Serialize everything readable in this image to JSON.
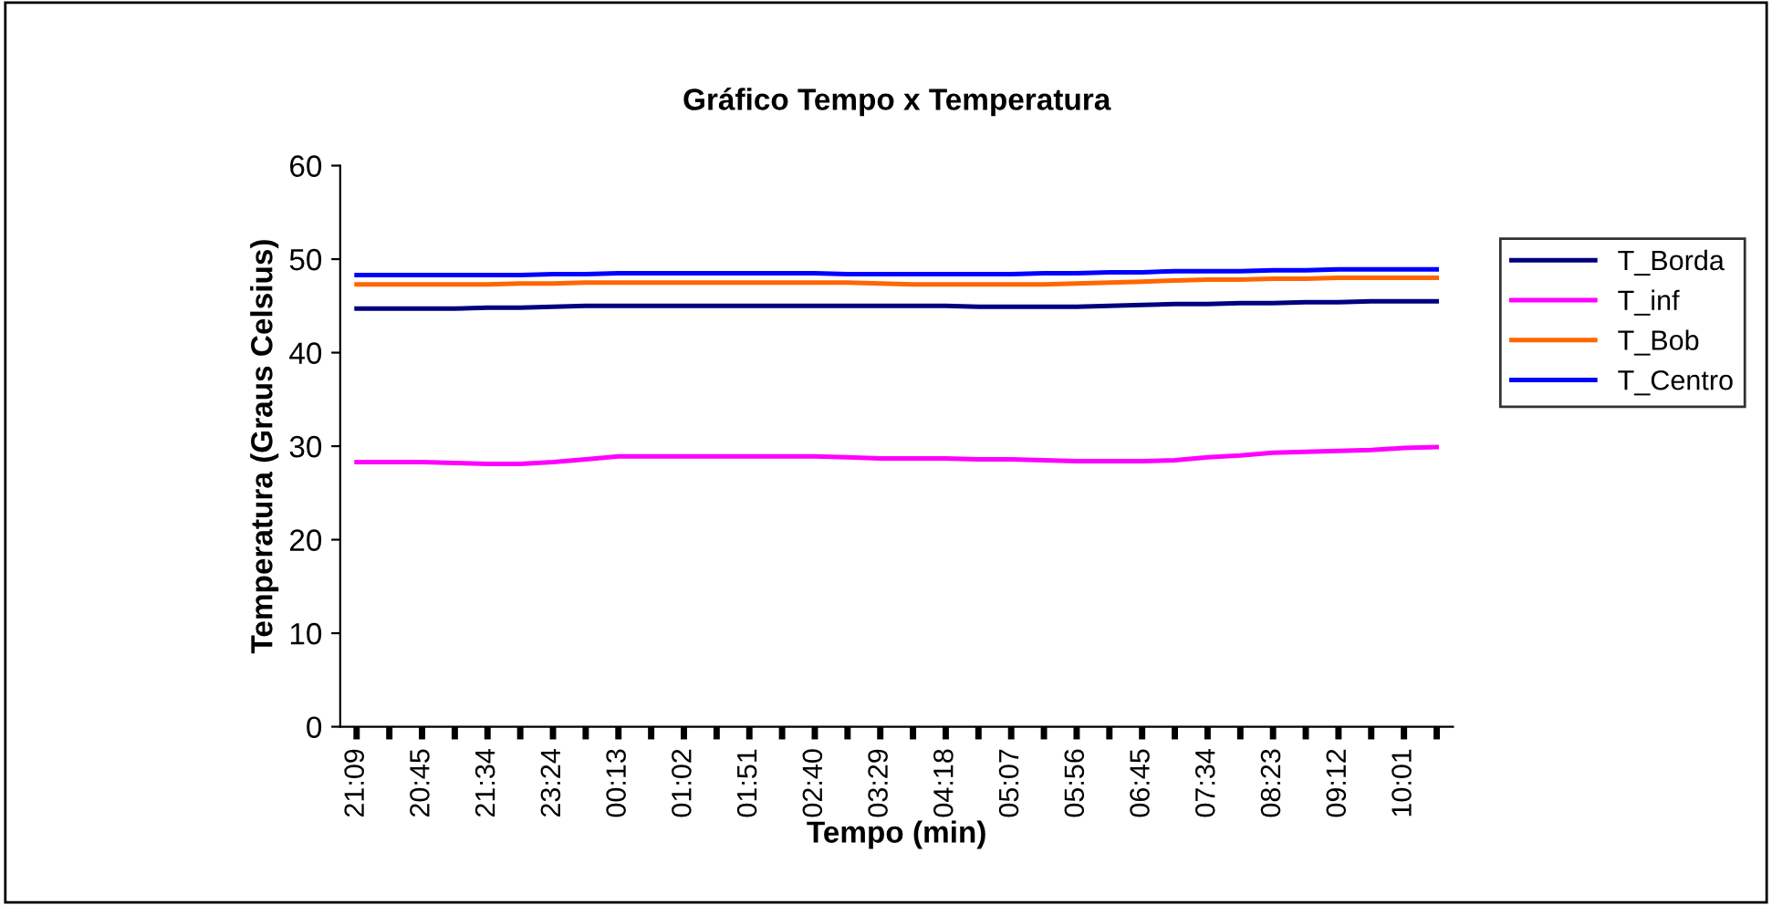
{
  "chart_data": {
    "type": "line",
    "title": "Gráfico Tempo x Temperatura",
    "xlabel": "Tempo (min)",
    "ylabel": "Temperatura (Graus Celsius)",
    "categories": [
      "21:09",
      null,
      "20:45",
      null,
      "21:34",
      null,
      "23:24",
      null,
      "00:13",
      null,
      "01:02",
      null,
      "01:51",
      null,
      "02:40",
      null,
      "03:29",
      null,
      "04:18",
      null,
      "05:07",
      null,
      "05:56",
      null,
      "06:45",
      null,
      "07:34",
      null,
      "08:23",
      null,
      "09:12",
      null,
      "10:01",
      null
    ],
    "series": [
      {
        "name": "T_Borda",
        "color": "#000080",
        "values": [
          44.7,
          44.7,
          44.7,
          44.7,
          44.8,
          44.8,
          44.9,
          45.0,
          45.0,
          45.0,
          45.0,
          45.0,
          45.0,
          45.0,
          45.0,
          45.0,
          45.0,
          45.0,
          45.0,
          44.9,
          44.9,
          44.9,
          44.9,
          45.0,
          45.1,
          45.2,
          45.2,
          45.3,
          45.3,
          45.4,
          45.4,
          45.5,
          45.5,
          45.5
        ]
      },
      {
        "name": "T_inf",
        "color": "#ff00ff",
        "values": [
          28.3,
          28.3,
          28.3,
          28.2,
          28.1,
          28.1,
          28.3,
          28.6,
          28.9,
          28.9,
          28.9,
          28.9,
          28.9,
          28.9,
          28.9,
          28.8,
          28.7,
          28.7,
          28.7,
          28.6,
          28.6,
          28.5,
          28.4,
          28.4,
          28.4,
          28.5,
          28.8,
          29.0,
          29.3,
          29.4,
          29.5,
          29.6,
          29.8,
          29.9
        ]
      },
      {
        "name": "T_Bob",
        "color": "#ff6600",
        "values": [
          47.3,
          47.3,
          47.3,
          47.3,
          47.3,
          47.4,
          47.4,
          47.5,
          47.5,
          47.5,
          47.5,
          47.5,
          47.5,
          47.5,
          47.5,
          47.5,
          47.4,
          47.3,
          47.3,
          47.3,
          47.3,
          47.3,
          47.4,
          47.5,
          47.6,
          47.7,
          47.8,
          47.8,
          47.9,
          47.9,
          48.0,
          48.0,
          48.0,
          48.0
        ]
      },
      {
        "name": "T_Centro",
        "color": "#0000ff",
        "values": [
          48.3,
          48.3,
          48.3,
          48.3,
          48.3,
          48.3,
          48.4,
          48.4,
          48.5,
          48.5,
          48.5,
          48.5,
          48.5,
          48.5,
          48.5,
          48.4,
          48.4,
          48.4,
          48.4,
          48.4,
          48.4,
          48.5,
          48.5,
          48.6,
          48.6,
          48.7,
          48.7,
          48.7,
          48.8,
          48.8,
          48.9,
          48.9,
          48.9,
          48.9
        ]
      }
    ],
    "ylim": [
      0,
      60
    ],
    "yticks": [
      0,
      10,
      20,
      30,
      40,
      50,
      60
    ],
    "grid": false,
    "legend": "right",
    "marker": "none",
    "line_style": "solid"
  }
}
